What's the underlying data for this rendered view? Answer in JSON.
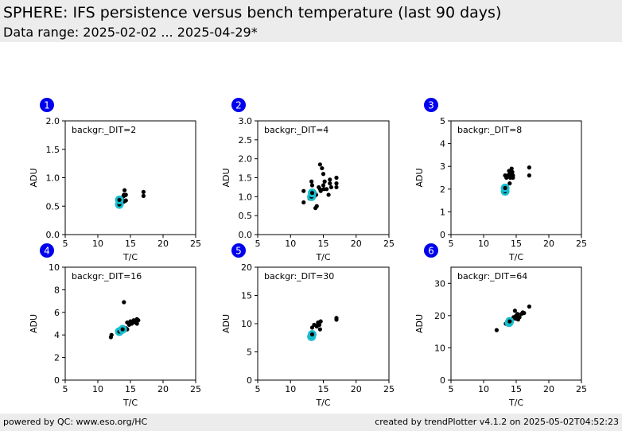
{
  "header": {
    "title": "SPHERE: IFS persistence versus bench temperature (last 90 days)",
    "subtitle": "Data range: 2025-02-02 ... 2025-04-29*"
  },
  "footer": {
    "left": "powered by QC: www.eso.org/HC",
    "right": "created by trendPlotter v4.1.2 on 2025-05-02T04:52:23"
  },
  "colors": {
    "points": "#000000",
    "latest": "#17becf",
    "badge": "#0000ee",
    "header_bg": "#ececec"
  },
  "chart_data": [
    {
      "type": "scatter",
      "panel": "1",
      "label": "backgr:_DIT=2",
      "xlabel": "T/C",
      "ylabel": "ADU",
      "xlim": [
        5,
        25
      ],
      "ylim": [
        0,
        2.0
      ],
      "xticks": [
        "5",
        "10",
        "15",
        "20",
        "25"
      ],
      "yticks": [
        "0.0",
        "0.5",
        "1.0",
        "1.5",
        "2.0"
      ],
      "x": [
        13.3,
        13.6,
        13.9,
        14.0,
        14.1,
        14.2,
        14.3,
        14.3,
        13.8,
        14.0,
        17.0,
        17.0
      ],
      "y": [
        0.55,
        0.64,
        0.67,
        0.7,
        0.78,
        0.69,
        0.7,
        0.6,
        0.6,
        0.58,
        0.75,
        0.68
      ],
      "latest_x": [
        13.3,
        13.3
      ],
      "latest_y": [
        0.53,
        0.61
      ]
    },
    {
      "type": "scatter",
      "panel": "2",
      "label": "backgr:_DIT=4",
      "xlabel": "T/C",
      "ylabel": "ADU",
      "xlim": [
        5,
        25
      ],
      "ylim": [
        0,
        3.0
      ],
      "xticks": [
        "5",
        "10",
        "15",
        "20",
        "25"
      ],
      "yticks": [
        "0.0",
        "0.5",
        "1.0",
        "1.5",
        "2.0",
        "2.5",
        "3.0"
      ],
      "x": [
        12.0,
        12.0,
        13.0,
        13.2,
        13.3,
        13.5,
        13.8,
        14.0,
        14.5,
        14.5,
        14.8,
        15.0,
        15.0,
        15.2,
        15.5,
        15.8,
        16.0,
        16.0,
        16.2,
        17.0,
        17.0,
        17.0,
        13.6,
        13.7,
        14.3,
        14.6,
        15.1,
        12.9,
        13.9
      ],
      "y": [
        0.85,
        1.15,
        0.95,
        1.4,
        1.3,
        1.15,
        0.7,
        0.75,
        1.85,
        1.2,
        1.75,
        1.6,
        1.3,
        1.4,
        1.2,
        1.05,
        1.45,
        1.35,
        1.25,
        1.35,
        1.25,
        1.5,
        1.0,
        1.1,
        1.25,
        1.15,
        1.2,
        0.95,
        1.05
      ],
      "latest_x": [
        13.2,
        13.3
      ],
      "latest_y": [
        1.0,
        1.1
      ]
    },
    {
      "type": "scatter",
      "panel": "3",
      "label": "backgr:_DIT=8",
      "xlabel": "T/C",
      "ylabel": "ADU",
      "xlim": [
        5,
        25
      ],
      "ylim": [
        0,
        5
      ],
      "xticks": [
        "5",
        "10",
        "15",
        "20",
        "25"
      ],
      "yticks": [
        "0",
        "1",
        "2",
        "3",
        "4",
        "5"
      ],
      "x": [
        13.3,
        13.5,
        13.7,
        13.9,
        14.0,
        14.1,
        14.2,
        14.3,
        14.4,
        14.5,
        13.8,
        14.0,
        14.2,
        14.5,
        17.0,
        17.0
      ],
      "y": [
        2.6,
        2.5,
        2.6,
        2.8,
        2.65,
        2.5,
        2.7,
        2.9,
        2.75,
        2.6,
        2.55,
        2.25,
        2.8,
        2.5,
        2.95,
        2.6
      ],
      "latest_x": [
        13.3,
        13.3
      ],
      "latest_y": [
        1.9,
        2.05
      ]
    },
    {
      "type": "scatter",
      "panel": "4",
      "label": "backgr:_DIT=16",
      "xlabel": "T/C",
      "ylabel": "ADU",
      "xlim": [
        5,
        25
      ],
      "ylim": [
        0,
        10
      ],
      "xticks": [
        "5",
        "10",
        "15",
        "20",
        "25"
      ],
      "yticks": [
        "0",
        "2",
        "4",
        "6",
        "8",
        "10"
      ],
      "x": [
        12.0,
        12.1,
        13.0,
        13.5,
        13.8,
        14.0,
        14.2,
        14.5,
        14.5,
        14.8,
        15.0,
        15.2,
        15.5,
        15.8,
        16.0,
        16.2,
        16.0,
        15.4,
        14.3
      ],
      "y": [
        3.8,
        4.0,
        4.4,
        4.5,
        4.4,
        6.9,
        4.6,
        4.5,
        5.1,
        4.9,
        5.2,
        5.0,
        5.3,
        5.1,
        5.4,
        5.3,
        5.0,
        5.1,
        4.6
      ],
      "latest_x": [
        13.3,
        13.8
      ],
      "latest_y": [
        4.3,
        4.5
      ]
    },
    {
      "type": "scatter",
      "panel": "5",
      "label": "backgr:_DIT=30",
      "xlabel": "T/C",
      "ylabel": "ADU",
      "xlim": [
        5,
        25
      ],
      "ylim": [
        0,
        20
      ],
      "xticks": [
        "5",
        "10",
        "15",
        "20",
        "25"
      ],
      "yticks": [
        "0",
        "5",
        "10",
        "15",
        "20"
      ],
      "x": [
        13.3,
        13.6,
        14.0,
        14.2,
        14.4,
        14.5,
        14.6,
        14.2,
        17.0,
        17.0
      ],
      "y": [
        9.3,
        9.8,
        9.5,
        10.2,
        9.8,
        9.0,
        10.4,
        10.0,
        10.7,
        11.0
      ],
      "latest_x": [
        13.2,
        13.3
      ],
      "latest_y": [
        7.7,
        8.1
      ]
    },
    {
      "type": "scatter",
      "panel": "6",
      "label": "backgr:_DIT=64",
      "xlabel": "T/C",
      "ylabel": "ADU",
      "xlim": [
        5,
        25
      ],
      "ylim": [
        0,
        35
      ],
      "xticks": [
        "5",
        "10",
        "15",
        "20",
        "25"
      ],
      "yticks": [
        "0",
        "10",
        "20",
        "30"
      ],
      "x": [
        12.0,
        13.4,
        14.0,
        14.5,
        14.8,
        15.0,
        15.0,
        15.2,
        15.5,
        15.8,
        16.0,
        16.2,
        17.0,
        14.6,
        15.3
      ],
      "y": [
        15.5,
        17.5,
        18.0,
        19.0,
        21.5,
        20.0,
        19.0,
        20.5,
        19.5,
        20.5,
        21.0,
        20.8,
        22.8,
        19.5,
        18.8
      ],
      "latest_x": [
        13.9,
        14.0
      ],
      "latest_y": [
        17.8,
        18.2
      ]
    }
  ]
}
